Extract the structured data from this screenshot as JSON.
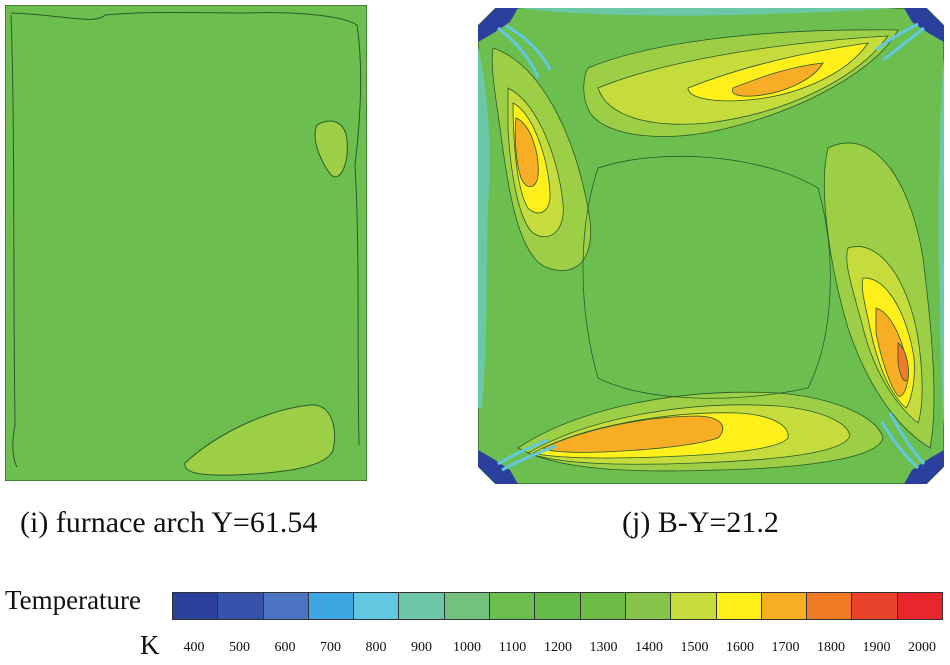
{
  "captions": {
    "panel_i": "(i) furnace arch Y=61.54",
    "panel_j": "(j) B-Y=21.2"
  },
  "legend": {
    "title": "Temperature",
    "unit": "K",
    "ticks": [
      "400",
      "500",
      "600",
      "700",
      "800",
      "900",
      "1000",
      "1100",
      "1200",
      "1300",
      "1400",
      "1500",
      "1600",
      "1700",
      "1800",
      "1900",
      "2000"
    ],
    "colors": [
      "#2b3f9e",
      "#3553aa",
      "#4a73c2",
      "#3ba6e0",
      "#62c8e2",
      "#6cc7a6",
      "#72c27e",
      "#6cbf4f",
      "#66bb48",
      "#6dbc48",
      "#88c34a",
      "#c5dc3c",
      "#ffef1a",
      "#f7ad24",
      "#f07a26",
      "#e8432a",
      "#e8262c"
    ]
  },
  "colors": {
    "base_green": "#6cbf4f",
    "light_green": "#9ccf46",
    "yellow_green": "#c5dc3c",
    "yellow": "#ffef1a",
    "orange": "#f7ad24",
    "dark_orange": "#ee7a2a",
    "teal": "#6cc7a6",
    "cyan": "#62c8e2",
    "blue": "#2b3f9e",
    "contour_line": "#2a5a2a"
  }
}
